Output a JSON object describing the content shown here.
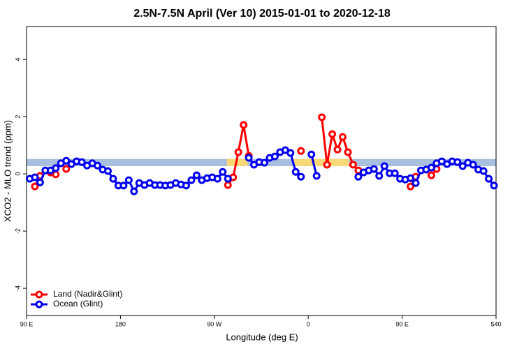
{
  "chart_data": {
    "type": "line",
    "title": "2.5N-7.5N April (Ver 10)   2015-01-01 to 2020-12-18",
    "x_label": "Longitude (deg E)",
    "y_label": "XCO2 - MLO trend (ppm)",
    "xlim": [
      90,
      540
    ],
    "xticks": [
      {
        "value": 90,
        "label": "90 E"
      },
      180,
      {
        "value": 270,
        "label": "90 W"
      },
      {
        "value": 360,
        "label": "0"
      },
      {
        "value": 450,
        "label": "90 E"
      },
      540
    ],
    "ylim": [
      -4.95,
      5.15
    ],
    "yticks": [
      -4,
      -2,
      0,
      2,
      4
    ],
    "band_range": [
      0.27,
      0.52
    ],
    "band_color": "#a8bfe0",
    "highlight_spans": [
      [
        282,
        302
      ],
      [
        346,
        399
      ]
    ],
    "highlight_color": "#f8d878",
    "legend": "bottom-left",
    "x": [
      93,
      98,
      103,
      108,
      113,
      118,
      123,
      128,
      133,
      138,
      143,
      148,
      153,
      158,
      163,
      168,
      173,
      178,
      183,
      188,
      193,
      198,
      203,
      208,
      213,
      218,
      223,
      228,
      233,
      238,
      243,
      248,
      253,
      258,
      263,
      268,
      273,
      278,
      283,
      288,
      293,
      298,
      303,
      308,
      313,
      318,
      323,
      328,
      333,
      338,
      343,
      348,
      353,
      358,
      363,
      368,
      373,
      378,
      383,
      388,
      393,
      398,
      403,
      408,
      413,
      418,
      423,
      428,
      433,
      438,
      443,
      448,
      453,
      458,
      463,
      468,
      473,
      478,
      483,
      488,
      493,
      498,
      503,
      508,
      513,
      518,
      523,
      528,
      533,
      538
    ],
    "series": [
      {
        "name": "Land (Nadir&Glint)",
        "color": "#ff0000",
        "values": [
          null,
          -0.44,
          -0.07,
          null,
          0.05,
          -0.02,
          null,
          0.17,
          null,
          null,
          null,
          null,
          null,
          null,
          null,
          null,
          null,
          null,
          null,
          null,
          null,
          null,
          null,
          null,
          null,
          null,
          null,
          null,
          null,
          null,
          null,
          null,
          null,
          null,
          null,
          null,
          null,
          null,
          -0.39,
          -0.12,
          0.76,
          1.71,
          0.63,
          null,
          null,
          null,
          null,
          null,
          null,
          null,
          null,
          null,
          0.8,
          null,
          null,
          null,
          1.98,
          0.32,
          1.39,
          0.85,
          1.29,
          0.76,
          0.32,
          0.12,
          null,
          null,
          null,
          null,
          null,
          null,
          null,
          null,
          null,
          -0.44,
          -0.1,
          null,
          null,
          -0.05,
          0.17,
          null,
          null,
          null,
          null,
          null,
          null,
          null,
          null,
          null,
          null,
          null
        ]
      },
      {
        "name": "Ocean (Glint)",
        "color": "#0000ee",
        "values": [
          -0.17,
          -0.12,
          -0.3,
          0.12,
          0.12,
          0.2,
          0.37,
          0.46,
          0.34,
          0.44,
          0.41,
          0.29,
          0.37,
          0.29,
          0.15,
          0.1,
          -0.17,
          -0.41,
          -0.41,
          -0.22,
          -0.61,
          -0.32,
          -0.39,
          -0.32,
          -0.39,
          -0.39,
          -0.41,
          -0.39,
          -0.32,
          -0.37,
          -0.41,
          -0.22,
          -0.05,
          -0.22,
          -0.15,
          -0.12,
          -0.17,
          0.07,
          -0.17,
          null,
          null,
          null,
          0.56,
          0.32,
          0.41,
          0.39,
          0.56,
          0.61,
          0.76,
          0.83,
          0.73,
          0.07,
          -0.1,
          null,
          0.68,
          -0.07,
          null,
          null,
          null,
          null,
          null,
          null,
          null,
          -0.1,
          0.05,
          0.12,
          0.17,
          -0.07,
          0.27,
          0.02,
          0.02,
          -0.17,
          -0.2,
          -0.15,
          -0.32,
          0.12,
          0.15,
          0.22,
          0.37,
          0.44,
          0.34,
          0.44,
          0.41,
          0.27,
          0.39,
          0.32,
          0.15,
          0.1,
          -0.17,
          -0.41
        ]
      }
    ]
  }
}
